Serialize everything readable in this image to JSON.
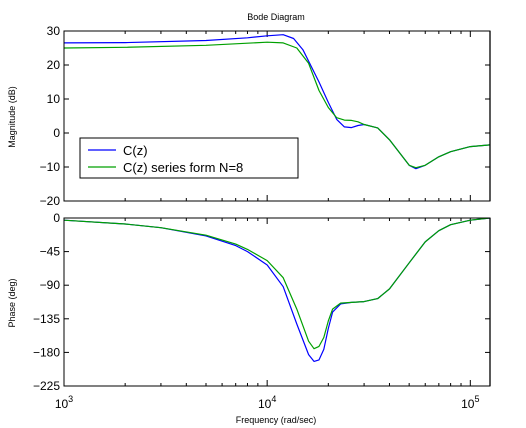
{
  "chart_data": {
    "type": "line",
    "title": "Bode Diagram",
    "xlabel": "Frequency (rad/sec)",
    "xscale": "log",
    "xlim": [
      1000,
      125000
    ],
    "x_tick_labels": [
      {
        "value": 1000,
        "base": "10",
        "exp": "3"
      },
      {
        "value": 10000,
        "base": "10",
        "exp": "4"
      },
      {
        "value": 100000,
        "base": "10",
        "exp": "5"
      }
    ],
    "nyquist_marker": 125000,
    "colors": {
      "C(z)": "#0000ff",
      "C(z) series form N=8": "#00a000"
    },
    "legend": {
      "placement": "lower-left of magnitude panel",
      "entries": [
        "C(z)",
        "C(z) series form N=8"
      ]
    },
    "panels": [
      {
        "name": "magnitude",
        "ylabel": "Magnitude (dB)",
        "ylim": [
          -20,
          30
        ],
        "yticks": [
          30,
          20,
          10,
          0,
          -10,
          -20
        ],
        "ytick_labels": [
          "30",
          "20",
          "10",
          "0",
          "−10",
          "−20"
        ],
        "series": [
          {
            "name": "C(z)",
            "x": [
              1000,
              2000,
              5000,
              8000,
              10000,
              12000,
              13500,
              15000,
              18000,
              20000,
              22000,
              24000,
              26000,
              28000,
              30000,
              35000,
              40000,
              50000,
              54000,
              60000,
              70000,
              80000,
              100000,
              125000
            ],
            "y": [
              26.5,
              26.6,
              27.2,
              28.0,
              28.6,
              28.9,
              27.8,
              24.5,
              15,
              9,
              4,
              1.8,
              1.6,
              2.2,
              2.5,
              1.5,
              -2,
              -9.5,
              -10.5,
              -9.5,
              -7,
              -5.5,
              -4,
              -3.5
            ]
          },
          {
            "name": "C(z) series form N=8",
            "x": [
              1000,
              2000,
              5000,
              8000,
              10000,
              12000,
              14000,
              16000,
              18000,
              20000,
              22000,
              24000,
              26000,
              28000,
              30000,
              35000,
              40000,
              50000,
              54000,
              60000,
              70000,
              80000,
              100000,
              125000
            ],
            "y": [
              25.0,
              25.2,
              25.8,
              26.4,
              26.7,
              26.5,
              25,
              20.5,
              12.5,
              7.5,
              4.5,
              3.8,
              3.7,
              3.3,
              2.5,
              1.5,
              -2,
              -9.5,
              -10.2,
              -9.5,
              -7,
              -5.5,
              -4,
              -3.5
            ]
          }
        ]
      },
      {
        "name": "phase",
        "ylabel": "Phase (deg)",
        "ylim": [
          -225,
          0
        ],
        "yticks": [
          0,
          -45,
          -90,
          -135,
          -180,
          -225
        ],
        "ytick_labels": [
          "0",
          "−45",
          "−90",
          "−135",
          "−180",
          "−225"
        ],
        "series": [
          {
            "name": "C(z)",
            "x": [
              1000,
              2000,
              3000,
              5000,
              7000,
              8000,
              10000,
              12000,
              14000,
              16000,
              17000,
              18000,
              19000,
              20000,
              21000,
              23000,
              26000,
              30000,
              35000,
              40000,
              50000,
              60000,
              70000,
              80000,
              100000,
              125000
            ],
            "y": [
              -3,
              -8,
              -13,
              -24,
              -37,
              -45,
              -63,
              -92,
              -142,
              -183,
              -192,
              -190,
              -176,
              -148,
              -126,
              -115,
              -113,
              -112,
              -108,
              -95,
              -60,
              -32,
              -17,
              -9,
              -3,
              0
            ]
          },
          {
            "name": "C(z) series form N=8",
            "x": [
              1000,
              2000,
              3000,
              5000,
              7000,
              8000,
              10000,
              12000,
              14000,
              16000,
              17000,
              18000,
              19000,
              20000,
              21000,
              23000,
              26000,
              30000,
              35000,
              40000,
              50000,
              60000,
              70000,
              80000,
              100000,
              125000
            ],
            "y": [
              -3,
              -8,
              -13,
              -23,
              -35,
              -42,
              -57,
              -80,
              -122,
              -165,
              -175,
              -172,
              -160,
              -138,
              -122,
              -114,
              -113,
              -112,
              -108,
              -95,
              -60,
              -32,
              -17,
              -9,
              -3,
              0
            ]
          }
        ]
      }
    ]
  }
}
